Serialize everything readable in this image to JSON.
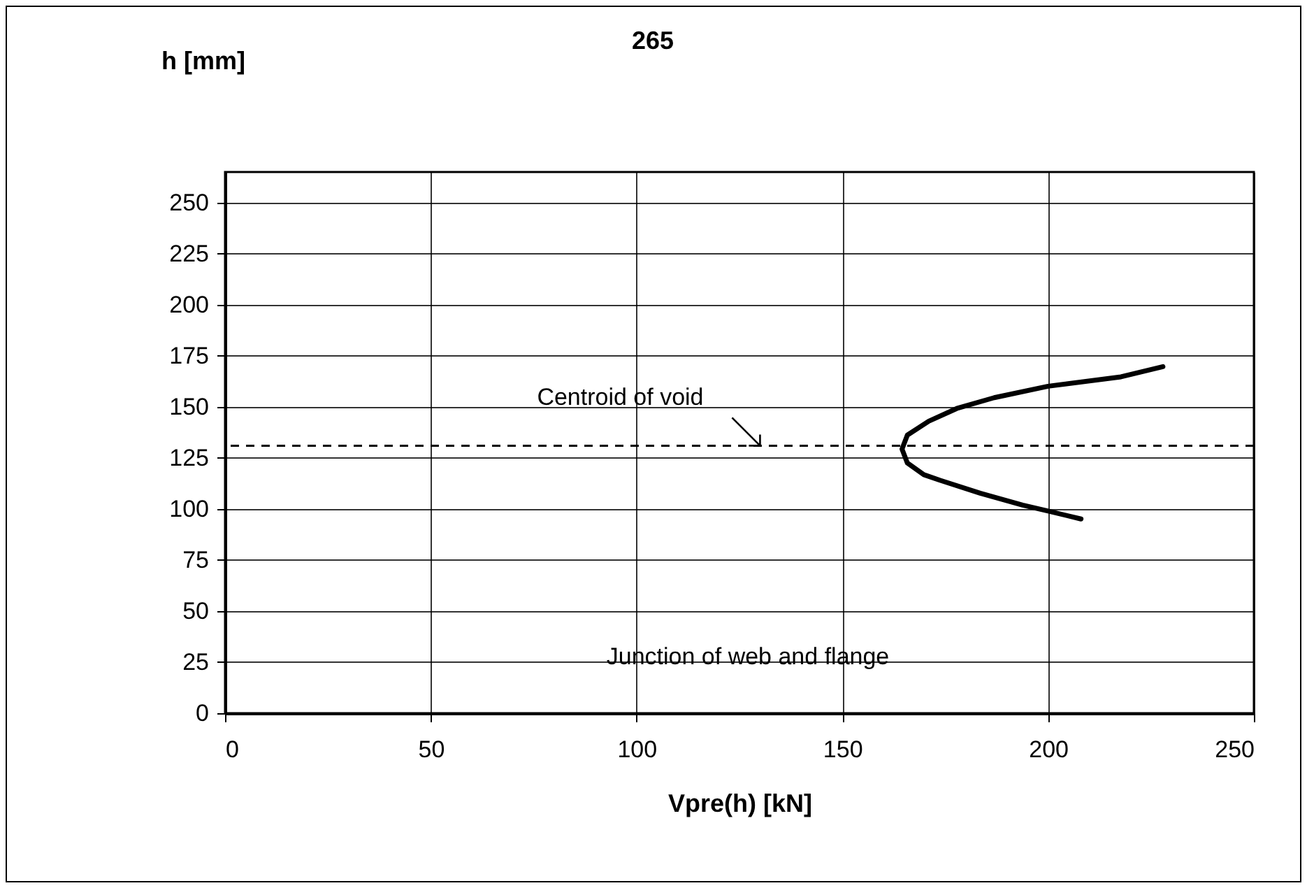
{
  "chart_data": {
    "type": "line",
    "title": "265",
    "xlabel": "Vpre(h)  [kN]",
    "ylabel": "h [mm]",
    "x": [
      227.9,
      217.7,
      200,
      186.9,
      177.8,
      171,
      165.8,
      164.5,
      165.8,
      169.8,
      173.8,
      183.5,
      193.8,
      200,
      208
    ],
    "series": [
      {
        "color": "#000000",
        "values": [
          169.7,
          164.7,
          160.1,
          154.5,
          149.2,
          143,
          136.2,
          129.3,
          122.5,
          116.8,
          114,
          107.7,
          101.9,
          99,
          95.1
        ]
      }
    ],
    "xlim": [
      0,
      250
    ],
    "xticks": [
      0,
      50,
      100,
      150,
      200,
      250
    ],
    "ylim": [
      0,
      265
    ],
    "yticks": [
      0,
      25,
      50,
      75,
      100,
      125,
      150,
      175,
      200,
      225,
      250
    ],
    "grid": true,
    "marker": "none",
    "line_style": "solid",
    "ref_lines": [
      {
        "axis": "y",
        "value": 131,
        "color": "#000000",
        "line_style": "dashed"
      }
    ],
    "annotations": [
      {
        "text": "Centroid of void",
        "x": 130,
        "y": 131
      },
      "Junction of web and flange"
    ]
  }
}
